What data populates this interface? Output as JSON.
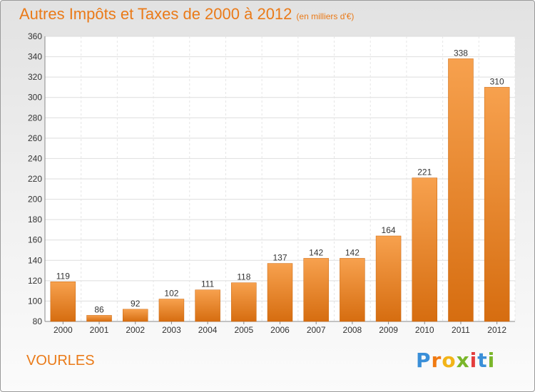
{
  "header": {
    "title": "Autres Impôts et Taxes de 2000 à 2012",
    "unit": "(en milliers d'€)"
  },
  "footer": {
    "commune": "VOURLES",
    "brand": "Proxiti",
    "brand_letters": [
      "P",
      "r",
      "o",
      "x",
      "i",
      "t",
      "i"
    ],
    "brand_colors": [
      "#3a8fd8",
      "#f07a12",
      "#f2b418",
      "#7ab62a",
      "#e43d3d",
      "#3a8fd8",
      "#7ab62a"
    ]
  },
  "chart_data": {
    "type": "bar",
    "categories": [
      "2000",
      "2001",
      "2002",
      "2003",
      "2004",
      "2005",
      "2006",
      "2007",
      "2008",
      "2009",
      "2010",
      "2011",
      "2012"
    ],
    "values": [
      119,
      86,
      92,
      102,
      111,
      118,
      137,
      142,
      142,
      164,
      221,
      338,
      310
    ],
    "ylim": [
      80,
      360
    ],
    "yticks": [
      80,
      100,
      120,
      140,
      160,
      180,
      200,
      220,
      240,
      260,
      280,
      300,
      320,
      340,
      360
    ],
    "grid": true,
    "bar_color_light": "#f7a14e",
    "bar_color_dark": "#d66d10"
  }
}
